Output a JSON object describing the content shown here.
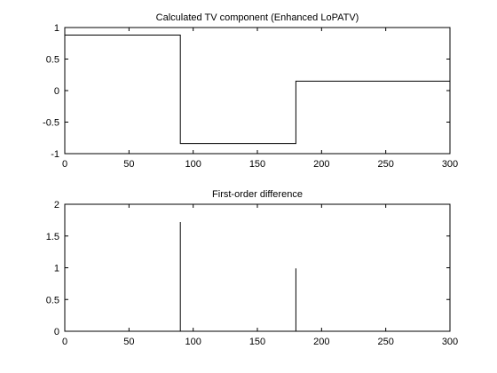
{
  "chart_data": [
    {
      "type": "line",
      "title": "Calculated TV component (Enhanced LoPATV)",
      "xlabel": "",
      "ylabel": "",
      "xlim": [
        0,
        300
      ],
      "ylim": [
        -1,
        1
      ],
      "xticks": [
        0,
        50,
        100,
        150,
        200,
        250,
        300
      ],
      "yticks": [
        -1,
        -0.5,
        0,
        0.5,
        1
      ],
      "xtick_labels": [
        "0",
        "50",
        "100",
        "150",
        "200",
        "250",
        "300"
      ],
      "ytick_labels": [
        "-1",
        "-0.5",
        "0",
        "0.5",
        "1"
      ],
      "grid": false,
      "series": [
        {
          "x": [
            0,
            90,
            90,
            180,
            180,
            300
          ],
          "y": [
            0.88,
            0.88,
            -0.84,
            -0.84,
            0.15,
            0.15
          ]
        }
      ]
    },
    {
      "type": "stem",
      "title": "First-order difference",
      "xlabel": "",
      "ylabel": "",
      "xlim": [
        0,
        300
      ],
      "ylim": [
        0,
        2
      ],
      "xticks": [
        0,
        50,
        100,
        150,
        200,
        250,
        300
      ],
      "yticks": [
        0,
        0.5,
        1,
        1.5,
        2
      ],
      "xtick_labels": [
        "0",
        "50",
        "100",
        "150",
        "200",
        "250",
        "300"
      ],
      "ytick_labels": [
        "0",
        "0.5",
        "1",
        "1.5",
        "2"
      ],
      "grid": false,
      "series": [
        {
          "x": [
            90,
            180
          ],
          "y": [
            1.72,
            0.99
          ]
        }
      ]
    }
  ]
}
